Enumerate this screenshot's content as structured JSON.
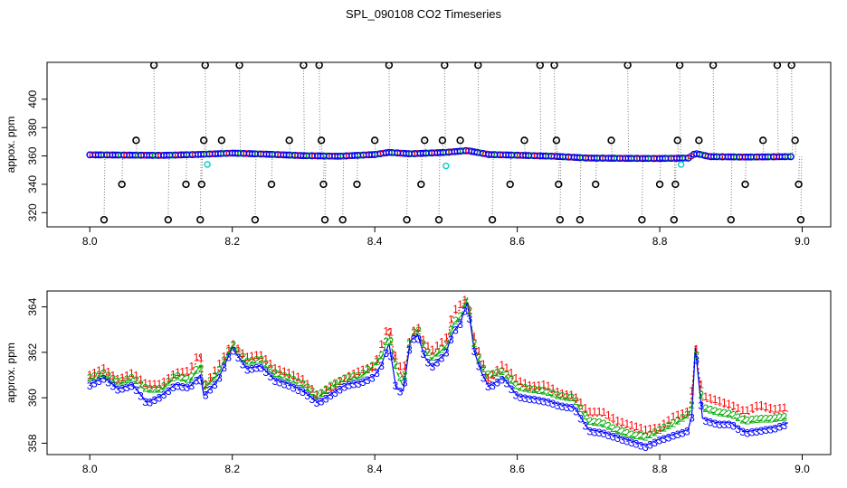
{
  "title": "SPL_090108  CO2 Timeseries",
  "chart_data": [
    {
      "type": "scatter",
      "title": "",
      "xlabel": "",
      "ylabel": "appox. ppm",
      "xlim": [
        7.94,
        9.04
      ],
      "ylim": [
        310,
        426
      ],
      "x_ticks": [
        8.0,
        8.2,
        8.4,
        8.6,
        8.8,
        9.0
      ],
      "x_tick_labels": [
        "8.0",
        "8.2",
        "8.4",
        "8.6",
        "8.8",
        "9.0"
      ],
      "y_ticks": [
        320,
        340,
        360,
        380,
        400
      ],
      "y_tick_labels": [
        "320",
        "340",
        "360",
        "380",
        "400"
      ],
      "baseline_series": {
        "name": "",
        "marker_colors": [
          "#0000ff",
          "#ff0000",
          "#00aa00"
        ],
        "x_start": 8.0,
        "x_end": 8.985,
        "points": [
          [
            8.0,
            360.8
          ],
          [
            8.05,
            360.6
          ],
          [
            8.1,
            360.4
          ],
          [
            8.15,
            361.0
          ],
          [
            8.2,
            362.0
          ],
          [
            8.25,
            361.2
          ],
          [
            8.3,
            360.2
          ],
          [
            8.35,
            359.8
          ],
          [
            8.4,
            361.0
          ],
          [
            8.42,
            362.5
          ],
          [
            8.45,
            361.5
          ],
          [
            8.5,
            362.5
          ],
          [
            8.53,
            363.8
          ],
          [
            8.56,
            361.0
          ],
          [
            8.6,
            360.5
          ],
          [
            8.65,
            359.8
          ],
          [
            8.7,
            358.5
          ],
          [
            8.75,
            358.3
          ],
          [
            8.8,
            358.2
          ],
          [
            8.84,
            358.5
          ],
          [
            8.85,
            361.8
          ],
          [
            8.87,
            359.5
          ],
          [
            8.92,
            359.2
          ],
          [
            8.985,
            359.5
          ]
        ]
      },
      "outliers": {
        "marker_color": "#000000",
        "points": [
          [
            8.02,
            315
          ],
          [
            8.045,
            340
          ],
          [
            8.065,
            371
          ],
          [
            8.09,
            424
          ],
          [
            8.11,
            315
          ],
          [
            8.135,
            340
          ],
          [
            8.155,
            315
          ],
          [
            8.157,
            340
          ],
          [
            8.16,
            371
          ],
          [
            8.162,
            424
          ],
          [
            8.185,
            371
          ],
          [
            8.21,
            424
          ],
          [
            8.232,
            315
          ],
          [
            8.255,
            340
          ],
          [
            8.28,
            371
          ],
          [
            8.3,
            424
          ],
          [
            8.322,
            424
          ],
          [
            8.325,
            371
          ],
          [
            8.328,
            340
          ],
          [
            8.33,
            315
          ],
          [
            8.355,
            315
          ],
          [
            8.375,
            340
          ],
          [
            8.4,
            371
          ],
          [
            8.42,
            424
          ],
          [
            8.445,
            315
          ],
          [
            8.465,
            340
          ],
          [
            8.47,
            371
          ],
          [
            8.49,
            315
          ],
          [
            8.495,
            371
          ],
          [
            8.498,
            424
          ],
          [
            8.52,
            371
          ],
          [
            8.545,
            424
          ],
          [
            8.565,
            315
          ],
          [
            8.59,
            340
          ],
          [
            8.61,
            371
          ],
          [
            8.632,
            424
          ],
          [
            8.652,
            424
          ],
          [
            8.655,
            371
          ],
          [
            8.658,
            340
          ],
          [
            8.66,
            315
          ],
          [
            8.688,
            315
          ],
          [
            8.71,
            340
          ],
          [
            8.732,
            371
          ],
          [
            8.755,
            424
          ],
          [
            8.775,
            315
          ],
          [
            8.8,
            340
          ],
          [
            8.82,
            315
          ],
          [
            8.822,
            340
          ],
          [
            8.825,
            371
          ],
          [
            8.828,
            424
          ],
          [
            8.855,
            371
          ],
          [
            8.875,
            424
          ],
          [
            8.9,
            315
          ],
          [
            8.92,
            340
          ],
          [
            8.945,
            371
          ],
          [
            8.965,
            424
          ],
          [
            8.985,
            424
          ],
          [
            8.99,
            371
          ],
          [
            8.995,
            340
          ],
          [
            8.998,
            315
          ]
        ]
      },
      "highlighted": {
        "marker_color": "#00cccc",
        "points": [
          [
            8.165,
            354
          ],
          [
            8.5,
            353
          ],
          [
            8.83,
            354
          ]
        ]
      }
    },
    {
      "type": "line",
      "title": "",
      "xlabel": "",
      "ylabel": "approx. ppm",
      "xlim": [
        7.94,
        9.04
      ],
      "ylim": [
        357.5,
        364.7
      ],
      "x_ticks": [
        8.0,
        8.2,
        8.4,
        8.6,
        8.8,
        9.0
      ],
      "x_tick_labels": [
        "8.0",
        "8.2",
        "8.4",
        "8.6",
        "8.8",
        "9.0"
      ],
      "y_ticks": [
        358,
        360,
        362,
        364
      ],
      "y_tick_labels": [
        "358",
        "360",
        "362",
        "364"
      ],
      "series": [
        {
          "name": "1",
          "color": "#ff0000",
          "style": "dotted",
          "points": [
            [
              8.0,
              360.8
            ],
            [
              8.02,
              361.1
            ],
            [
              8.04,
              360.6
            ],
            [
              8.06,
              360.9
            ],
            [
              8.08,
              360.4
            ],
            [
              8.1,
              360.4
            ],
            [
              8.12,
              360.9
            ],
            [
              8.14,
              361.0
            ],
            [
              8.155,
              361.9
            ],
            [
              8.16,
              360.3
            ],
            [
              8.18,
              361.2
            ],
            [
              8.2,
              362.2
            ],
            [
              8.22,
              361.6
            ],
            [
              8.24,
              361.7
            ],
            [
              8.26,
              361.1
            ],
            [
              8.28,
              360.9
            ],
            [
              8.3,
              360.6
            ],
            [
              8.32,
              359.9
            ],
            [
              8.34,
              360.3
            ],
            [
              8.36,
              360.7
            ],
            [
              8.38,
              361.0
            ],
            [
              8.4,
              361.2
            ],
            [
              8.41,
              362.2
            ],
            [
              8.42,
              363.1
            ],
            [
              8.43,
              361.5
            ],
            [
              8.44,
              360.9
            ],
            [
              8.45,
              362.5
            ],
            [
              8.46,
              363.0
            ],
            [
              8.47,
              362.2
            ],
            [
              8.48,
              361.9
            ],
            [
              8.5,
              362.4
            ],
            [
              8.51,
              363.6
            ],
            [
              8.52,
              363.9
            ],
            [
              8.53,
              364.2
            ],
            [
              8.54,
              362.4
            ],
            [
              8.55,
              361.5
            ],
            [
              8.56,
              360.6
            ],
            [
              8.58,
              361.3
            ],
            [
              8.6,
              360.6
            ],
            [
              8.62,
              360.3
            ],
            [
              8.64,
              360.4
            ],
            [
              8.66,
              360.0
            ],
            [
              8.68,
              359.9
            ],
            [
              8.7,
              359.2
            ],
            [
              8.72,
              359.2
            ],
            [
              8.74,
              358.8
            ],
            [
              8.76,
              358.6
            ],
            [
              8.78,
              358.4
            ],
            [
              8.8,
              358.5
            ],
            [
              8.82,
              359.0
            ],
            [
              8.84,
              359.2
            ],
            [
              8.845,
              360.1
            ],
            [
              8.85,
              362.3
            ],
            [
              8.86,
              359.9
            ],
            [
              8.88,
              359.7
            ],
            [
              8.9,
              359.5
            ],
            [
              8.92,
              359.2
            ],
            [
              8.94,
              359.5
            ],
            [
              8.96,
              359.3
            ],
            [
              8.98,
              359.4
            ]
          ]
        },
        {
          "name": "2",
          "color": "#00aa00",
          "style": "dashed",
          "points": [
            [
              8.0,
              360.8
            ],
            [
              8.02,
              361.0
            ],
            [
              8.04,
              360.6
            ],
            [
              8.06,
              360.8
            ],
            [
              8.08,
              360.3
            ],
            [
              8.1,
              360.3
            ],
            [
              8.12,
              360.9
            ],
            [
              8.14,
              360.7
            ],
            [
              8.155,
              361.4
            ],
            [
              8.16,
              360.4
            ],
            [
              8.18,
              361.0
            ],
            [
              8.2,
              362.3
            ],
            [
              8.22,
              361.5
            ],
            [
              8.24,
              361.6
            ],
            [
              8.26,
              361.0
            ],
            [
              8.28,
              360.8
            ],
            [
              8.3,
              360.5
            ],
            [
              8.32,
              360.0
            ],
            [
              8.34,
              360.5
            ],
            [
              8.36,
              360.8
            ],
            [
              8.38,
              360.9
            ],
            [
              8.4,
              361.4
            ],
            [
              8.41,
              361.8
            ],
            [
              8.42,
              362.8
            ],
            [
              8.43,
              361.2
            ],
            [
              8.44,
              360.5
            ],
            [
              8.45,
              362.6
            ],
            [
              8.46,
              363.0
            ],
            [
              8.47,
              362.1
            ],
            [
              8.48,
              361.7
            ],
            [
              8.5,
              362.2
            ],
            [
              8.51,
              363.2
            ],
            [
              8.52,
              363.5
            ],
            [
              8.53,
              364.4
            ],
            [
              8.54,
              362.2
            ],
            [
              8.55,
              361.3
            ],
            [
              8.56,
              360.9
            ],
            [
              8.58,
              361.1
            ],
            [
              8.6,
              360.4
            ],
            [
              8.62,
              360.3
            ],
            [
              8.64,
              360.2
            ],
            [
              8.66,
              360.0
            ],
            [
              8.68,
              359.9
            ],
            [
              8.7,
              358.9
            ],
            [
              8.72,
              358.8
            ],
            [
              8.74,
              358.5
            ],
            [
              8.76,
              358.3
            ],
            [
              8.78,
              358.2
            ],
            [
              8.8,
              358.5
            ],
            [
              8.82,
              358.8
            ],
            [
              8.84,
              359.2
            ],
            [
              8.845,
              359.6
            ],
            [
              8.85,
              362.2
            ],
            [
              8.86,
              359.5
            ],
            [
              8.88,
              359.3
            ],
            [
              8.9,
              359.2
            ],
            [
              8.92,
              358.9
            ],
            [
              8.94,
              359.0
            ],
            [
              8.96,
              359.0
            ],
            [
              8.98,
              359.1
            ]
          ]
        },
        {
          "name": "3",
          "color": "#0000ff",
          "style": "solid",
          "points": [
            [
              8.0,
              360.6
            ],
            [
              8.02,
              360.9
            ],
            [
              8.04,
              360.4
            ],
            [
              8.06,
              360.6
            ],
            [
              8.08,
              359.8
            ],
            [
              8.1,
              360.1
            ],
            [
              8.12,
              360.6
            ],
            [
              8.14,
              360.5
            ],
            [
              8.155,
              361.0
            ],
            [
              8.16,
              360.1
            ],
            [
              8.18,
              360.8
            ],
            [
              8.2,
              362.2
            ],
            [
              8.22,
              361.3
            ],
            [
              8.24,
              361.4
            ],
            [
              8.26,
              360.8
            ],
            [
              8.28,
              360.6
            ],
            [
              8.3,
              360.3
            ],
            [
              8.32,
              359.8
            ],
            [
              8.34,
              360.2
            ],
            [
              8.36,
              360.6
            ],
            [
              8.38,
              360.7
            ],
            [
              8.4,
              361.0
            ],
            [
              8.41,
              361.5
            ],
            [
              8.42,
              362.4
            ],
            [
              8.43,
              360.4
            ],
            [
              8.44,
              360.3
            ],
            [
              8.45,
              362.5
            ],
            [
              8.46,
              362.8
            ],
            [
              8.47,
              361.8
            ],
            [
              8.48,
              361.4
            ],
            [
              8.5,
              362.0
            ],
            [
              8.51,
              362.9
            ],
            [
              8.52,
              363.3
            ],
            [
              8.53,
              364.2
            ],
            [
              8.54,
              362.0
            ],
            [
              8.55,
              361.1
            ],
            [
              8.56,
              360.5
            ],
            [
              8.58,
              360.9
            ],
            [
              8.6,
              360.1
            ],
            [
              8.62,
              360.0
            ],
            [
              8.64,
              359.9
            ],
            [
              8.66,
              359.7
            ],
            [
              8.68,
              359.6
            ],
            [
              8.7,
              358.6
            ],
            [
              8.72,
              358.5
            ],
            [
              8.74,
              358.3
            ],
            [
              8.76,
              358.1
            ],
            [
              8.78,
              357.9
            ],
            [
              8.8,
              358.2
            ],
            [
              8.82,
              358.4
            ],
            [
              8.84,
              358.6
            ],
            [
              8.845,
              359.2
            ],
            [
              8.85,
              362.2
            ],
            [
              8.86,
              359.1
            ],
            [
              8.88,
              358.9
            ],
            [
              8.9,
              358.9
            ],
            [
              8.92,
              358.5
            ],
            [
              8.94,
              358.6
            ],
            [
              8.96,
              358.7
            ],
            [
              8.98,
              358.9
            ]
          ]
        }
      ]
    }
  ]
}
